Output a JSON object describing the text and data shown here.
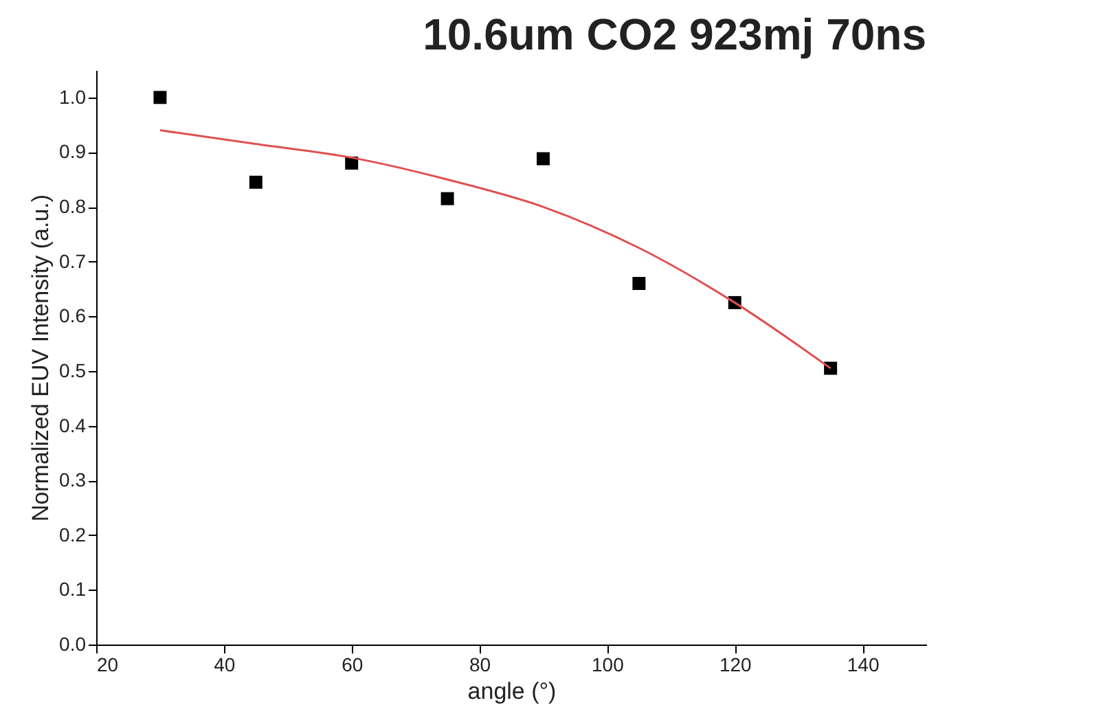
{
  "chart_data": {
    "type": "scatter",
    "title": "10.6um CO2 923mj 70ns",
    "xlabel": "angle (°)",
    "ylabel": "Normalized EUV Intensity (a.u.)",
    "x": [
      30,
      45,
      60,
      75,
      90,
      105,
      120,
      135
    ],
    "series": [
      {
        "type": "scatter",
        "color": "#000000",
        "marker": "square",
        "values": [
          1.0,
          0.845,
          0.88,
          0.815,
          0.888,
          0.66,
          0.625,
          0.505
        ]
      },
      {
        "type": "line",
        "color": "#e05050",
        "line_style": "solid",
        "x": [
          30,
          45,
          60,
          75,
          90,
          105,
          120,
          135
        ],
        "values": [
          0.94,
          0.915,
          0.89,
          0.85,
          0.8,
          0.725,
          0.625,
          0.505
        ]
      }
    ],
    "xlim": [
      20,
      150
    ],
    "xticks": [
      20,
      40,
      60,
      80,
      100,
      120,
      140
    ],
    "ylim": [
      0,
      1.05
    ],
    "yticks": [
      {
        "value": 0,
        "label": "0.0"
      },
      0.1,
      0.2,
      0.3,
      0.4,
      0.5,
      0.6,
      0.7,
      0.8,
      0.9,
      {
        "value": 1,
        "label": "1.0"
      }
    ],
    "grid": false
  }
}
